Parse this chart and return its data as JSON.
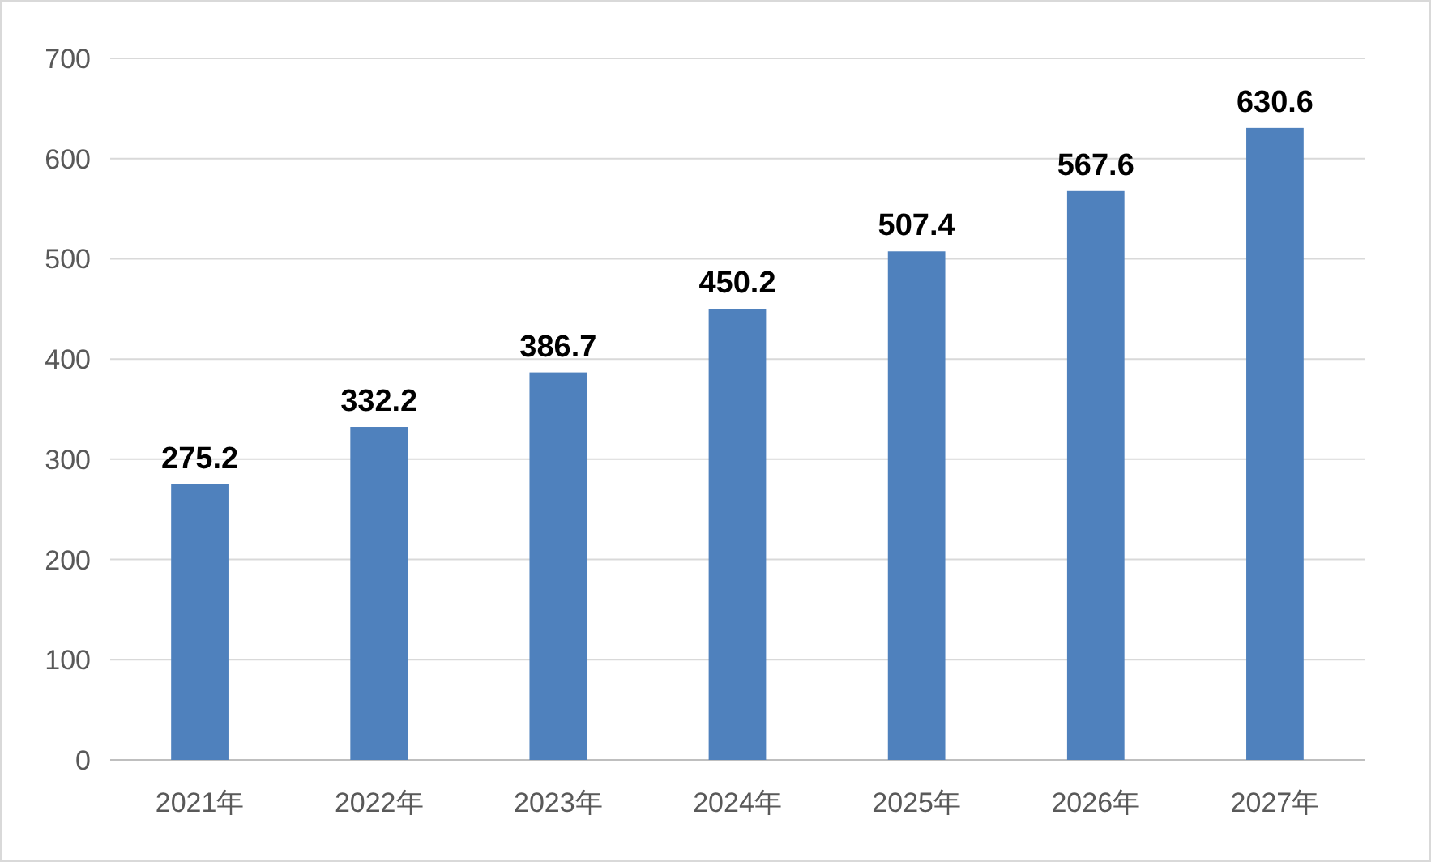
{
  "chart_data": {
    "type": "bar",
    "categories": [
      "2021年",
      "2022年",
      "2023年",
      "2024年",
      "2025年",
      "2026年",
      "2027年"
    ],
    "values": [
      275.2,
      332.2,
      386.7,
      450.2,
      507.4,
      567.6,
      630.6
    ],
    "color": "#4f81bd",
    "ylim": [
      0,
      700
    ],
    "yticks": [
      0,
      100,
      200,
      300,
      400,
      500,
      600,
      700
    ],
    "grid": "y",
    "data_labels": true
  }
}
